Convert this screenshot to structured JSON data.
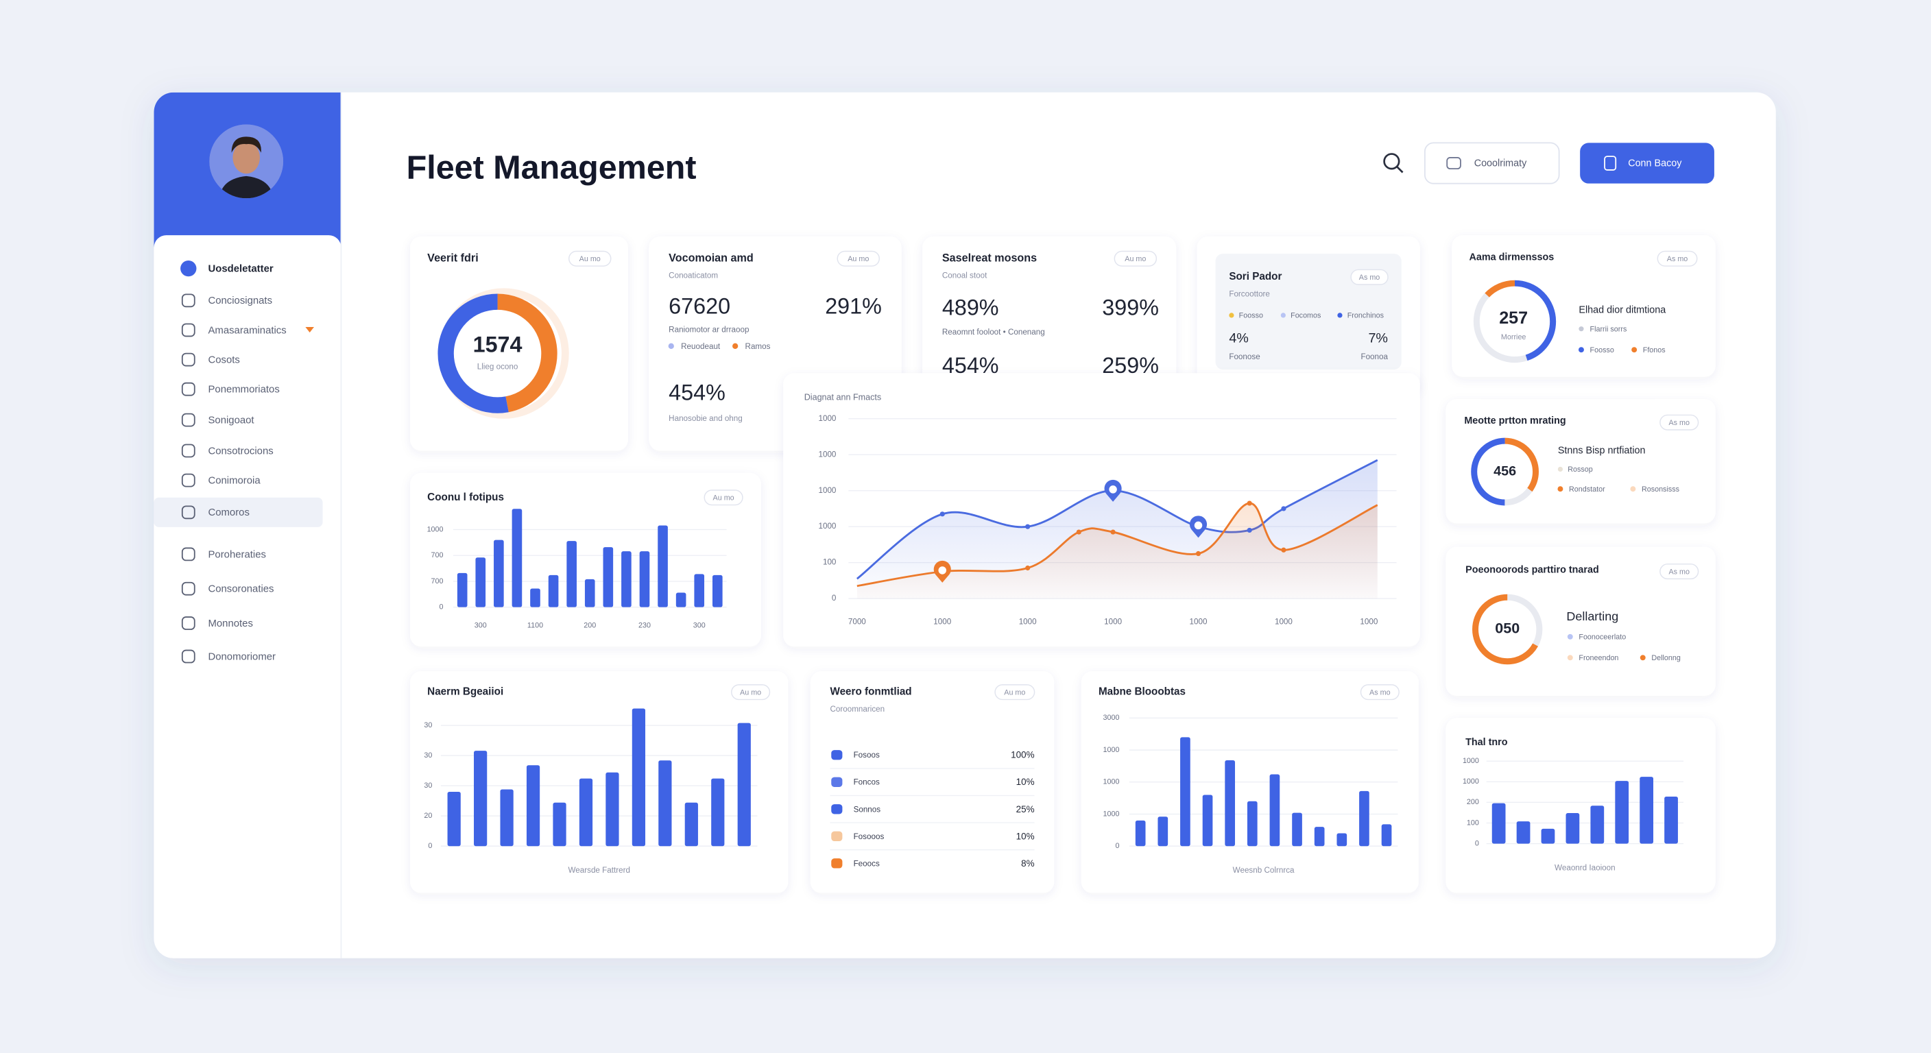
{
  "header": {
    "title": "Fleet Management",
    "buttons": [
      "Cooolrimaty",
      "Conn Bacoy"
    ]
  },
  "sidebar": {
    "items": [
      "Uosdeletatter",
      "Conciosignats",
      "Amasaraminatics",
      "Cosots",
      "Ponemmoriatos",
      "Sonigoaot",
      "Consotrocions",
      "Conimoroia",
      "Comoros",
      "Poroheraties",
      "Consoronaties",
      "Monnotes",
      "Donomoriomer"
    ]
  },
  "cards": {
    "vehicle": {
      "type": "donut",
      "title": "Veerit fdri",
      "badge": "Au mo",
      "center_value": 1574,
      "center_label": "Llieg ocono",
      "values": [
        47,
        53
      ],
      "colors": [
        "#f07f2c",
        "#3f63e4"
      ]
    },
    "volume": {
      "title": "Vocomoian amd",
      "badge": "Au mo",
      "subtitle": "Conoaticatom",
      "value_a": 67620,
      "value_b": "291%",
      "caption": "Raniomotor ar drraoop",
      "legend": [
        {
          "name": "Reuodeaut",
          "color": "#a9b5f0"
        },
        {
          "name": "Ramos",
          "color": "#f07f2c"
        }
      ],
      "value_c": "454%",
      "note": "Hanosobie and ohng"
    },
    "status": {
      "title": "Saselreat mosons",
      "badge": "Au mo",
      "subtitle": "Conoal stoot",
      "value_a": "489%",
      "value_b": "399%",
      "caption": "Reaomnt fooloot • Conenang",
      "value_c": "454%",
      "value_d": "259%"
    },
    "sort": {
      "title": "Sori Pador",
      "badge": "As mo",
      "subtitle": "Forcoottore",
      "legend": [
        {
          "name": "Foosso",
          "color": "#f0c040"
        },
        {
          "name": "Focomos",
          "color": "#b8c4f4"
        },
        {
          "name": "Fronchinos",
          "color": "#3f63e4"
        }
      ],
      "value_a": "4%",
      "value_b": "7%",
      "label_a": "Foonose",
      "label_b": "Foonoa"
    },
    "trend": {
      "type": "line",
      "title": "Diagnat ann Fmacts",
      "xlim": [
        -0.1,
        6.15
      ],
      "xticks": [
        {
          "value": 0,
          "label": "7000"
        },
        {
          "value": 1,
          "label": "1000"
        },
        {
          "value": 2,
          "label": "1000"
        },
        {
          "value": 3,
          "label": "1000"
        },
        {
          "value": 4,
          "label": "1000"
        },
        {
          "value": 5,
          "label": "1000"
        },
        {
          "value": 6,
          "label": "1000"
        }
      ],
      "ylim": [
        0,
        100
      ],
      "yticks": [
        0,
        {
          "value": 20,
          "label": "100"
        },
        {
          "value": 40,
          "label": "1000"
        },
        {
          "value": 60,
          "label": "1000"
        },
        {
          "value": 80,
          "label": "1000"
        },
        {
          "value": 100,
          "label": "1000"
        }
      ],
      "series": [
        {
          "color": "#4a6be0",
          "x": [
            0,
            1,
            2,
            3,
            4,
            4.6,
            5,
            6.1
          ],
          "values": [
            11,
            47,
            40,
            60,
            40,
            38,
            50,
            77
          ]
        },
        {
          "color": "#ec7a2c",
          "x": [
            0,
            1,
            2,
            2.6,
            3,
            4,
            4.6,
            5,
            6.1
          ],
          "values": [
            7,
            15,
            17,
            37,
            37,
            25,
            53,
            27,
            52
          ]
        }
      ]
    },
    "fleet_bars": {
      "type": "bar",
      "title": "Coonu l fotipus",
      "badge": "Au mo",
      "color": "#3f63e4",
      "ylim": [
        0,
        100
      ],
      "yticks": [
        0,
        {
          "value": 25,
          "label": "700"
        },
        {
          "value": 50,
          "label": "700"
        },
        {
          "value": 75,
          "label": "1000"
        }
      ],
      "values": [
        33,
        48,
        65,
        95,
        18,
        31,
        64,
        27,
        58,
        54,
        54,
        79,
        14,
        32,
        31
      ],
      "x_labels": [
        300,
        1100,
        200,
        230,
        300
      ]
    },
    "route_bars": {
      "type": "bar",
      "title": "Naerm Bgeaiioi",
      "badge": "Au mo",
      "color": "#3f63e4",
      "ylim": [
        0,
        120
      ],
      "yticks": [
        0,
        {
          "value": 25,
          "label": "20"
        },
        {
          "value": 50,
          "label": "30"
        },
        {
          "value": 75,
          "label": "30"
        },
        {
          "value": 100,
          "label": "30"
        }
      ],
      "values": [
        45,
        79,
        47,
        67,
        36,
        56,
        61,
        114,
        71,
        36,
        56,
        102
      ],
      "x_title": "Wearsde Fattrerd"
    },
    "list": {
      "title": "Weero fonmtliad",
      "badge": "Au mo",
      "subtitle": "Coroomnaricen",
      "rows": [
        {
          "name": "Fosoos",
          "value": "100%",
          "color": "#3f63e4"
        },
        {
          "name": "Foncos",
          "value": "10%",
          "color": "#5b78e8"
        },
        {
          "name": "Sonnos",
          "value": "25%",
          "color": "#3f63e4"
        },
        {
          "name": "Fosooos",
          "value": "10%",
          "color": "#f6c79c"
        },
        {
          "name": "Feoocs",
          "value": "8%",
          "color": "#f07f2c"
        }
      ]
    },
    "usage_bars": {
      "type": "bar",
      "title": "Mabne Blooobtas",
      "badge": "As mo",
      "color": "#3f63e4",
      "ylim": [
        0,
        100
      ],
      "yticks": [
        0,
        {
          "value": 25,
          "label": "1000"
        },
        {
          "value": 50,
          "label": "1000"
        },
        {
          "value": 75,
          "label": "1000"
        },
        {
          "value": 100,
          "label": "3000"
        }
      ],
      "values": [
        20,
        23,
        85,
        40,
        67,
        35,
        56,
        26,
        15,
        10,
        43,
        17
      ],
      "x_title": "Weesnb Colrnrca"
    },
    "dims": {
      "type": "donut",
      "title": "Aama dirmenssos",
      "badge": "As mo",
      "center_value": 257,
      "center_label": "Morriee",
      "values": [
        45,
        42,
        13
      ],
      "colors": [
        "#3f63e4",
        "#e8eaf0",
        "#f07f2c"
      ],
      "heading": "Elhad dior ditmtiona",
      "line": "Flarrii sorrs",
      "legend": [
        {
          "name": "Foosso",
          "color": "#3f63e4"
        },
        {
          "name": "Ffonos",
          "color": "#f07f2c"
        }
      ]
    },
    "meter": {
      "type": "donut",
      "title": "Meotte prtton mrating",
      "badge": "As mo",
      "center_value": 456,
      "values": [
        35,
        15,
        50
      ],
      "colors": [
        "#f07f2c",
        "#e8eaf0",
        "#3f63e4"
      ],
      "heading": "Stnns Bisp nrtfiation",
      "line": "Rossop",
      "legend": [
        {
          "name": "Rondstator",
          "color": "#f07f2c"
        },
        {
          "name": "Rosonsisss",
          "color": "#fbd9bd"
        }
      ]
    },
    "perf": {
      "type": "donut",
      "title": "Poeonoorods parttiro tnarad",
      "badge": "As mo",
      "center_value": "050",
      "values": [
        33,
        67
      ],
      "colors": [
        "#e8eaf0",
        "#f07f2c"
      ],
      "heading": "Dellarting",
      "line": "Foonoceerlato",
      "legend": [
        {
          "name": "Froneendon",
          "color": "#fbd9bd"
        },
        {
          "name": "Dellonng",
          "color": "#f07f2c"
        }
      ]
    },
    "small_bars": {
      "type": "bar",
      "title": "Thal tnro",
      "color": "#3f63e4",
      "ylim": [
        0,
        100
      ],
      "yticks": [
        0,
        {
          "value": 25,
          "label": "100"
        },
        {
          "value": 50,
          "label": "200"
        },
        {
          "value": 75,
          "label": "1000"
        },
        {
          "value": 100,
          "label": "1000"
        }
      ],
      "values": [
        49,
        27,
        18,
        37,
        46,
        76,
        81,
        57
      ],
      "x_title": "Weaonrd Iaoioon"
    }
  }
}
